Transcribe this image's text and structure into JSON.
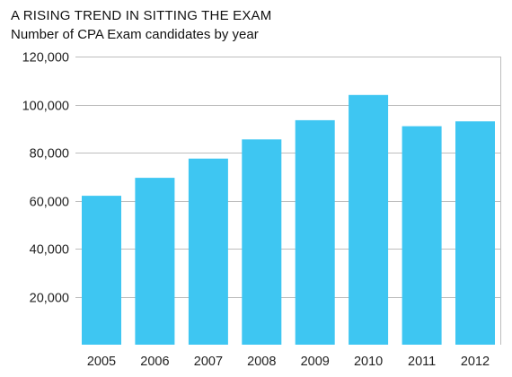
{
  "chart_data": {
    "type": "bar",
    "title": "A RISING TREND IN SITTING THE EXAM",
    "subtitle": "Number of CPA Exam candidates by year",
    "categories": [
      "2005",
      "2006",
      "2007",
      "2008",
      "2009",
      "2010",
      "2011",
      "2012"
    ],
    "values": [
      62000,
      69500,
      77500,
      85500,
      93500,
      104000,
      91000,
      93000
    ],
    "ylim": [
      0,
      120000
    ],
    "yticks": [
      20000,
      40000,
      60000,
      80000,
      100000,
      120000
    ],
    "ytick_labels": [
      "20,000",
      "40,000",
      "60,000",
      "80,000",
      "100,000",
      "120,000"
    ],
    "grid": true,
    "bar_color": "#3EC6F2",
    "grid_color": "#BDBDBD"
  }
}
